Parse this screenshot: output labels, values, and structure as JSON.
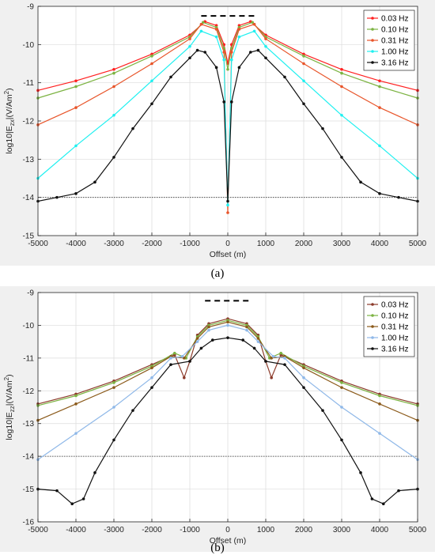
{
  "captions": {
    "a": "(a)",
    "b": "(b)"
  },
  "chart_data": [
    {
      "type": "line",
      "panel": "a",
      "xlabel": "Offset (m)",
      "ylabel_main": "log10|E",
      "ylabel_sub": "zx",
      "ylabel_unit": "|(V/Am",
      "ylabel_sup": "2",
      "ylabel_close": ")",
      "xlim": [
        -5000,
        5000
      ],
      "ylim": [
        -15,
        -9
      ],
      "xticks": [
        -5000,
        -4000,
        -3000,
        -2000,
        -1000,
        0,
        1000,
        2000,
        3000,
        4000,
        5000
      ],
      "yticks": [
        -15,
        -14,
        -13,
        -12,
        -11,
        -10,
        -9
      ],
      "grid": true,
      "legend": "top-right",
      "noise_floor": -14,
      "source_bar": {
        "x": [
          -700,
          700
        ],
        "y": -9.25
      },
      "colors": [
        "#ff2020",
        "#7cb342",
        "#e8552a",
        "#1ff0f0",
        "#111111"
      ],
      "series": [
        {
          "name": "0.03 Hz",
          "points": [
            [
              -5000,
              -11.2
            ],
            [
              -4000,
              -10.95
            ],
            [
              -3000,
              -10.65
            ],
            [
              -2000,
              -10.25
            ],
            [
              -1000,
              -9.75
            ],
            [
              -600,
              -9.4
            ],
            [
              -300,
              -9.5
            ],
            [
              -100,
              -10.0
            ],
            [
              0,
              -10.5
            ],
            [
              100,
              -10.0
            ],
            [
              300,
              -9.5
            ],
            [
              600,
              -9.4
            ],
            [
              1000,
              -9.75
            ],
            [
              2000,
              -10.25
            ],
            [
              3000,
              -10.65
            ],
            [
              4000,
              -10.95
            ],
            [
              5000,
              -11.2
            ]
          ]
        },
        {
          "name": "0.10 Hz",
          "points": [
            [
              -5000,
              -11.4
            ],
            [
              -4000,
              -11.1
            ],
            [
              -3000,
              -10.75
            ],
            [
              -2000,
              -10.3
            ],
            [
              -1000,
              -9.8
            ],
            [
              -650,
              -9.42
            ],
            [
              -300,
              -9.55
            ],
            [
              -100,
              -10.1
            ],
            [
              0,
              -10.65
            ],
            [
              100,
              -10.1
            ],
            [
              300,
              -9.55
            ],
            [
              650,
              -9.42
            ],
            [
              1000,
              -9.8
            ],
            [
              2000,
              -10.3
            ],
            [
              3000,
              -10.75
            ],
            [
              4000,
              -11.1
            ],
            [
              5000,
              -11.4
            ]
          ]
        },
        {
          "name": "0.31 Hz",
          "points": [
            [
              -5000,
              -12.1
            ],
            [
              -4000,
              -11.65
            ],
            [
              -3000,
              -11.1
            ],
            [
              -2000,
              -10.5
            ],
            [
              -1000,
              -9.85
            ],
            [
              -700,
              -9.47
            ],
            [
              -300,
              -9.6
            ],
            [
              -100,
              -10.2
            ],
            [
              0,
              -14.4
            ],
            [
              100,
              -10.2
            ],
            [
              300,
              -9.6
            ],
            [
              700,
              -9.47
            ],
            [
              1000,
              -9.85
            ],
            [
              2000,
              -10.5
            ],
            [
              3000,
              -11.1
            ],
            [
              4000,
              -11.65
            ],
            [
              5000,
              -12.1
            ]
          ]
        },
        {
          "name": "1.00 Hz",
          "points": [
            [
              -5000,
              -13.5
            ],
            [
              -4000,
              -12.65
            ],
            [
              -3000,
              -11.85
            ],
            [
              -2000,
              -10.95
            ],
            [
              -1000,
              -10.05
            ],
            [
              -700,
              -9.65
            ],
            [
              -300,
              -9.8
            ],
            [
              -100,
              -10.4
            ],
            [
              0,
              -14.2
            ],
            [
              100,
              -10.4
            ],
            [
              300,
              -9.8
            ],
            [
              700,
              -9.65
            ],
            [
              1000,
              -10.05
            ],
            [
              2000,
              -10.95
            ],
            [
              3000,
              -11.85
            ],
            [
              4000,
              -12.65
            ],
            [
              5000,
              -13.5
            ]
          ]
        },
        {
          "name": "3.16 Hz",
          "points": [
            [
              -5000,
              -14.1
            ],
            [
              -4500,
              -14.0
            ],
            [
              -4000,
              -13.9
            ],
            [
              -3500,
              -13.6
            ],
            [
              -3000,
              -12.95
            ],
            [
              -2500,
              -12.2
            ],
            [
              -2000,
              -11.55
            ],
            [
              -1500,
              -10.85
            ],
            [
              -1000,
              -10.35
            ],
            [
              -800,
              -10.15
            ],
            [
              -600,
              -10.2
            ],
            [
              -300,
              -10.6
            ],
            [
              -100,
              -11.5
            ],
            [
              0,
              -14.1
            ],
            [
              100,
              -11.5
            ],
            [
              300,
              -10.6
            ],
            [
              600,
              -10.2
            ],
            [
              800,
              -10.15
            ],
            [
              1000,
              -10.35
            ],
            [
              1500,
              -10.85
            ],
            [
              2000,
              -11.55
            ],
            [
              2500,
              -12.2
            ],
            [
              3000,
              -12.95
            ],
            [
              3500,
              -13.6
            ],
            [
              4000,
              -13.9
            ],
            [
              4500,
              -14.0
            ],
            [
              5000,
              -14.1
            ]
          ]
        }
      ]
    },
    {
      "type": "line",
      "panel": "b",
      "xlabel": "Offset (m)",
      "ylabel_main": "log10|E",
      "ylabel_sub": "zz",
      "ylabel_unit": "|(V/Am",
      "ylabel_sup": "2",
      "ylabel_close": ")",
      "xlim": [
        -5000,
        5000
      ],
      "ylim": [
        -16,
        -9
      ],
      "xticks": [
        -5000,
        -4000,
        -3000,
        -2000,
        -1000,
        0,
        1000,
        2000,
        3000,
        4000,
        5000
      ],
      "yticks": [
        -16,
        -15,
        -14,
        -13,
        -12,
        -11,
        -10,
        -9
      ],
      "grid": true,
      "legend": "top-right",
      "noise_floor": -14,
      "source_bar": {
        "x": [
          -600,
          600
        ],
        "y": -9.25
      },
      "colors": [
        "#8b3a2a",
        "#7cb342",
        "#8b5a1a",
        "#8fb8e8",
        "#111111"
      ],
      "series": [
        {
          "name": "0.03 Hz",
          "points": [
            [
              -5000,
              -12.4
            ],
            [
              -4000,
              -12.1
            ],
            [
              -3000,
              -11.7
            ],
            [
              -2000,
              -11.2
            ],
            [
              -1400,
              -10.9
            ],
            [
              -1150,
              -11.6
            ],
            [
              -1000,
              -11.1
            ],
            [
              -800,
              -10.3
            ],
            [
              -500,
              -9.95
            ],
            [
              0,
              -9.8
            ],
            [
              500,
              -9.95
            ],
            [
              800,
              -10.3
            ],
            [
              1000,
              -11.1
            ],
            [
              1150,
              -11.6
            ],
            [
              1400,
              -10.9
            ],
            [
              2000,
              -11.2
            ],
            [
              3000,
              -11.7
            ],
            [
              4000,
              -12.1
            ],
            [
              5000,
              -12.4
            ]
          ]
        },
        {
          "name": "0.10 Hz",
          "points": [
            [
              -5000,
              -12.45
            ],
            [
              -4000,
              -12.15
            ],
            [
              -3000,
              -11.75
            ],
            [
              -2000,
              -11.25
            ],
            [
              -1400,
              -10.85
            ],
            [
              -1100,
              -11.0
            ],
            [
              -800,
              -10.35
            ],
            [
              -500,
              -10.0
            ],
            [
              0,
              -9.85
            ],
            [
              500,
              -10.0
            ],
            [
              800,
              -10.35
            ],
            [
              1100,
              -11.0
            ],
            [
              1400,
              -10.85
            ],
            [
              2000,
              -11.25
            ],
            [
              3000,
              -11.75
            ],
            [
              4000,
              -12.15
            ],
            [
              5000,
              -12.45
            ]
          ]
        },
        {
          "name": "0.31 Hz",
          "points": [
            [
              -5000,
              -12.9
            ],
            [
              -4000,
              -12.4
            ],
            [
              -3000,
              -11.9
            ],
            [
              -2000,
              -11.3
            ],
            [
              -1500,
              -10.95
            ],
            [
              -1150,
              -11.0
            ],
            [
              -800,
              -10.4
            ],
            [
              -500,
              -10.05
            ],
            [
              0,
              -9.9
            ],
            [
              500,
              -10.05
            ],
            [
              800,
              -10.4
            ],
            [
              1150,
              -11.0
            ],
            [
              1500,
              -10.95
            ],
            [
              2000,
              -11.3
            ],
            [
              3000,
              -11.9
            ],
            [
              4000,
              -12.4
            ],
            [
              5000,
              -12.9
            ]
          ]
        },
        {
          "name": "1.00 Hz",
          "points": [
            [
              -5000,
              -14.1
            ],
            [
              -4000,
              -13.3
            ],
            [
              -3000,
              -12.5
            ],
            [
              -2000,
              -11.6
            ],
            [
              -1500,
              -11.0
            ],
            [
              -1200,
              -10.95
            ],
            [
              -800,
              -10.5
            ],
            [
              -500,
              -10.15
            ],
            [
              0,
              -10.0
            ],
            [
              500,
              -10.15
            ],
            [
              800,
              -10.5
            ],
            [
              1200,
              -10.95
            ],
            [
              1500,
              -11.0
            ],
            [
              2000,
              -11.6
            ],
            [
              3000,
              -12.5
            ],
            [
              4000,
              -13.3
            ],
            [
              5000,
              -14.1
            ]
          ]
        },
        {
          "name": "3.16 Hz",
          "points": [
            [
              -5000,
              -15.0
            ],
            [
              -4500,
              -15.05
            ],
            [
              -4100,
              -15.45
            ],
            [
              -3800,
              -15.3
            ],
            [
              -3500,
              -14.5
            ],
            [
              -3000,
              -13.5
            ],
            [
              -2500,
              -12.6
            ],
            [
              -2000,
              -11.9
            ],
            [
              -1500,
              -11.2
            ],
            [
              -1000,
              -11.1
            ],
            [
              -700,
              -10.7
            ],
            [
              -400,
              -10.45
            ],
            [
              0,
              -10.38
            ],
            [
              400,
              -10.45
            ],
            [
              700,
              -10.7
            ],
            [
              1000,
              -11.1
            ],
            [
              1500,
              -11.2
            ],
            [
              2000,
              -11.9
            ],
            [
              2500,
              -12.6
            ],
            [
              3000,
              -13.5
            ],
            [
              3500,
              -14.5
            ],
            [
              3800,
              -15.3
            ],
            [
              4100,
              -15.45
            ],
            [
              4500,
              -15.05
            ],
            [
              5000,
              -15.0
            ]
          ]
        }
      ]
    }
  ]
}
